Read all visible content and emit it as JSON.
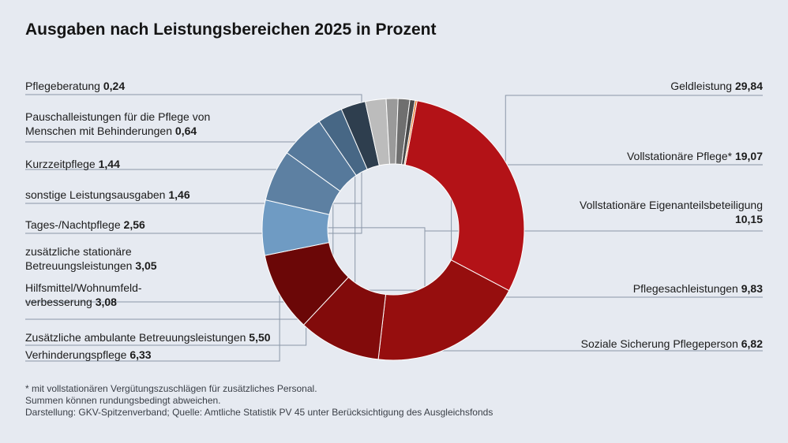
{
  "title": "Ausgaben nach Leistungsbereichen 2025 in Prozent",
  "chart_data": {
    "type": "pie",
    "title": "Ausgaben nach Leistungsbereichen 2025 in Prozent",
    "unit": "Prozent",
    "donut": true,
    "slices": [
      {
        "label": [
          "Geldleistung"
        ],
        "value": 29.84,
        "display": "29,84",
        "color": "#b31217"
      },
      {
        "label": [
          "Vollstationäre Pflege*"
        ],
        "value": 19.07,
        "display": "19,07",
        "color": "#960e0e"
      },
      {
        "label": [
          "Vollstationäre Eigenanteilsbeteiligung"
        ],
        "value": 10.15,
        "display": "10,15",
        "color": "#820b0b"
      },
      {
        "label": [
          "Pflegesachleistungen"
        ],
        "value": 9.83,
        "display": "9,83",
        "color": "#6b0707"
      },
      {
        "label": [
          "Soziale Sicherung Pflegeperson"
        ],
        "value": 6.82,
        "display": "6,82",
        "color": "#6f9bc3"
      },
      {
        "label": [
          "Verhinderungspflege"
        ],
        "value": 6.33,
        "display": "6,33",
        "color": "#5d80a2"
      },
      {
        "label": [
          "Zusätzliche ambulante Betreuungsleistungen"
        ],
        "value": 5.5,
        "display": "5,50",
        "color": "#56799b"
      },
      {
        "label": [
          "Hilfsmittel/Wohnumfeld-",
          "verbesserung"
        ],
        "value": 3.08,
        "display": "3,08",
        "color": "#476785"
      },
      {
        "label": [
          "zusätzliche stationäre",
          "Betreuungsleistungen"
        ],
        "value": 3.05,
        "display": "3,05",
        "color": "#2e3e4e"
      },
      {
        "label": [
          "Tages-/Nachtpflege"
        ],
        "value": 2.56,
        "display": "2,56",
        "color": "#bcbcbc"
      },
      {
        "label": [
          "sonstige Leistungsausgaben"
        ],
        "value": 1.46,
        "display": "1,46",
        "color": "#9a9a9a"
      },
      {
        "label": [
          "Kurzzeitpflege"
        ],
        "value": 1.44,
        "display": "1,44",
        "color": "#6f6f6f"
      },
      {
        "label": [
          "Pauschalleistungen für die Pflege von",
          "Menschen mit Behinderungen"
        ],
        "value": 0.64,
        "display": "0,64",
        "color": "#4a4a4a"
      },
      {
        "label": [
          "Pflegeberatung"
        ],
        "value": 0.24,
        "display": "0,24",
        "color": "#e8782a"
      }
    ]
  },
  "footnotes": [
    " * mit vollstationären Vergütungszuschlägen für zusätzliches Personal.",
    "Summen können rundungsbedingt abweichen.",
    "Darstellung: GKV-Spitzenverband; Quelle: Amtliche Statistik PV 45 unter Berücksichtigung des Ausgleichsfonds"
  ]
}
